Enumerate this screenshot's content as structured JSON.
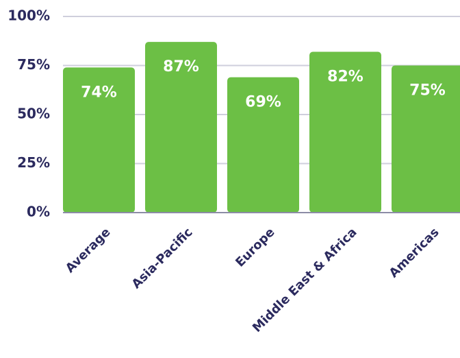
{
  "chart_data": {
    "type": "bar",
    "categories": [
      "Average",
      "Asia-Pacific",
      "Europe",
      "Middle East & Africa",
      "Americas"
    ],
    "values": [
      74,
      87,
      69,
      82,
      75
    ],
    "value_labels": [
      "74%",
      "87%",
      "69%",
      "82%",
      "75%"
    ],
    "color": "#6cbf45",
    "ylim": [
      0,
      100
    ],
    "yticks": [
      {
        "value": 0,
        "label": "0%"
      },
      {
        "value": 25,
        "label": "25%"
      },
      {
        "value": 50,
        "label": "50%"
      },
      {
        "value": 75,
        "label": "75%"
      },
      {
        "value": 100,
        "label": "100%"
      }
    ],
    "grid": true
  }
}
